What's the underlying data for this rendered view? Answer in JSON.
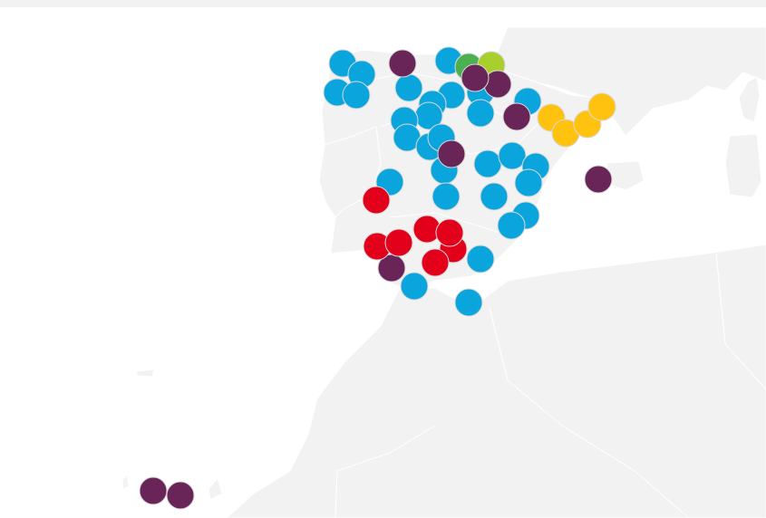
{
  "markers": [
    {
      "color": "#0aa5dd"
    },
    {
      "color": "#0aa5dd"
    },
    {
      "color": "#0aa5dd"
    },
    {
      "color": "#0aa5dd"
    },
    {
      "color": "#0aa5dd"
    },
    {
      "color": "#0aa5dd"
    },
    {
      "color": "#0aa5dd"
    },
    {
      "color": "#0aa5dd"
    },
    {
      "color": "#0aa5dd"
    },
    {
      "color": "#0aa5dd"
    },
    {
      "color": "#0aa5dd"
    },
    {
      "color": "#0aa5dd"
    },
    {
      "color": "#0aa5dd"
    },
    {
      "color": "#0aa5dd"
    },
    {
      "color": "#0aa5dd"
    },
    {
      "color": "#0aa5dd"
    },
    {
      "color": "#0aa5dd"
    },
    {
      "color": "#0aa5dd"
    },
    {
      "color": "#0aa5dd"
    },
    {
      "color": "#0aa5dd"
    },
    {
      "color": "#0aa5dd"
    },
    {
      "color": "#0aa5dd"
    },
    {
      "color": "#0aa5dd"
    },
    {
      "color": "#0aa5dd"
    },
    {
      "color": "#0aa5dd"
    },
    {
      "color": "#0aa5dd"
    },
    {
      "color": "#0aa5dd"
    },
    {
      "color": "#0aa5dd"
    },
    {
      "color": "#0aa5dd"
    },
    {
      "color": "#4caf50"
    },
    {
      "color": "#a8cf2c"
    },
    {
      "color": "#6a2558"
    },
    {
      "color": "#6a2558"
    },
    {
      "color": "#6a2558"
    },
    {
      "color": "#6a2558"
    },
    {
      "color": "#6a2558"
    },
    {
      "color": "#6a2558"
    },
    {
      "color": "#6a2558"
    },
    {
      "color": "#6a2558"
    },
    {
      "color": "#6a2558"
    },
    {
      "color": "#e2001a"
    },
    {
      "color": "#e2001a"
    },
    {
      "color": "#e2001a"
    },
    {
      "color": "#e2001a"
    },
    {
      "color": "#e2001a"
    },
    {
      "color": "#e2001a"
    },
    {
      "color": "#e2001a"
    },
    {
      "color": "#ffc20e"
    },
    {
      "color": "#ffc20e"
    },
    {
      "color": "#ffc20e"
    },
    {
      "color": "#ffc20e"
    }
  ]
}
